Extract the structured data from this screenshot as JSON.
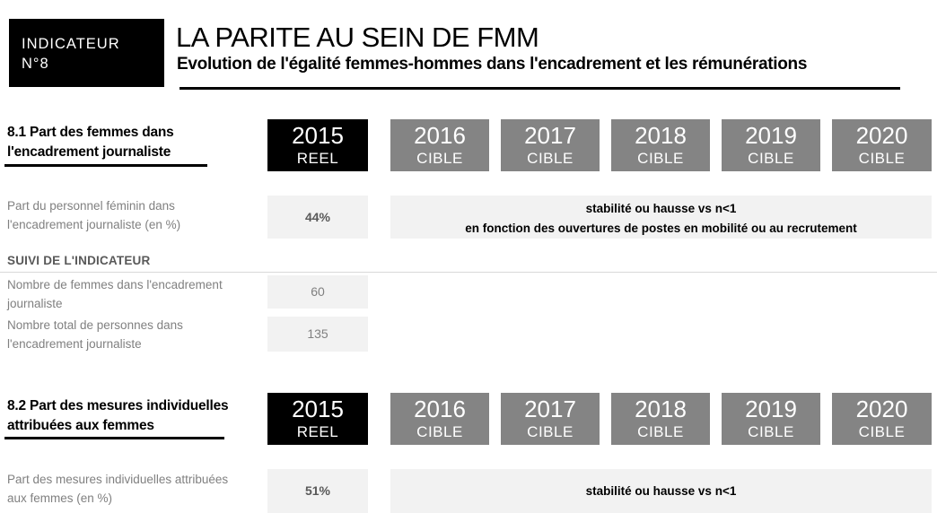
{
  "badge": {
    "line1": "INDICATEUR",
    "line2": "N°8"
  },
  "header": {
    "title": "LA PARITE AU SEIN DE FMM",
    "subtitle": "Evolution de l'égalité femmes-hommes dans l'encadrement et les rémunérations"
  },
  "year_columns": {
    "reel": {
      "year": "2015",
      "label": "REEL"
    },
    "cibles": [
      {
        "year": "2016",
        "label": "CIBLE"
      },
      {
        "year": "2017",
        "label": "CIBLE"
      },
      {
        "year": "2018",
        "label": "CIBLE"
      },
      {
        "year": "2019",
        "label": "CIBLE"
      },
      {
        "year": "2020",
        "label": "CIBLE"
      }
    ]
  },
  "section1": {
    "title_line1": "8.1 Part des femmes dans",
    "title_line2": "l'encadrement journaliste",
    "indicator_row": {
      "label_line1": "Part du personnel féminin dans",
      "label_line2": "l'encadrement journaliste (en %)",
      "value_2015": "44%",
      "target_line1": "stabilité ou hausse vs n<1",
      "target_line2": "en fonction des ouvertures de postes en mobilité ou au recrutement"
    },
    "suivi": {
      "heading": "SUIVI DE L'INDICATEUR",
      "rows": [
        {
          "label_line1": "Nombre de femmes dans l'encadrement",
          "label_line2": "journaliste",
          "value": "60"
        },
        {
          "label_line1": "Nombre total de personnes dans",
          "label_line2": "l'encadrement journaliste",
          "value": "135"
        }
      ]
    }
  },
  "section2": {
    "title_line1": "8.2 Part des mesures individuelles",
    "title_line2": "attribuées aux femmes",
    "indicator_row": {
      "label_line1": "Part des mesures individuelles attribuées",
      "label_line2": "aux femmes (en %)",
      "value_2015": "51%",
      "target": "stabilité ou hausse vs n<1"
    }
  },
  "colors": {
    "reel_header_bg": "#000000",
    "cible_header_bg": "#848484",
    "value_cell_bg": "#f2f2f2",
    "label_text": "#808080",
    "value_text": "#595959",
    "rule": "#d9d9d9"
  }
}
